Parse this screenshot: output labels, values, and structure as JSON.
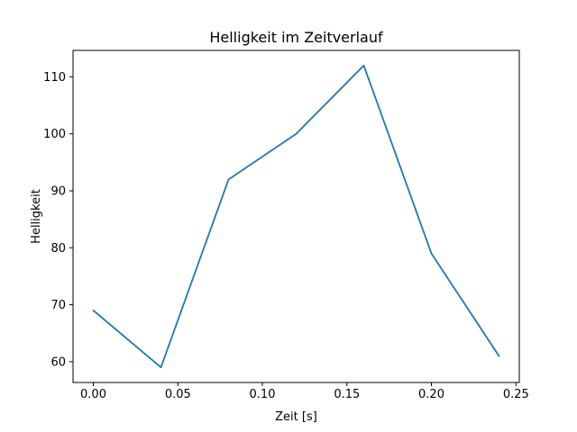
{
  "chart_data": {
    "type": "line",
    "title": "Helligkeit im Zeitverlauf",
    "xlabel": "Zeit [s]",
    "ylabel": "Helligkeit",
    "x": [
      0.0,
      0.04,
      0.08,
      0.12,
      0.16,
      0.2,
      0.24
    ],
    "y": [
      69,
      59,
      92,
      100,
      112,
      79,
      61
    ],
    "xlim": [
      -0.012,
      0.252
    ],
    "ylim": [
      56.35,
      114.65
    ],
    "xticks": [
      0.0,
      0.05,
      0.1,
      0.15,
      0.2,
      0.25
    ],
    "xtick_labels": [
      "0.00",
      "0.05",
      "0.10",
      "0.15",
      "0.20",
      "0.25"
    ],
    "yticks": [
      60,
      70,
      80,
      90,
      100,
      110
    ],
    "ytick_labels": [
      "60",
      "70",
      "80",
      "90",
      "100",
      "110"
    ],
    "line_color": "#1f77b4",
    "background_color": "#ffffff",
    "grid": false,
    "legend": false
  }
}
